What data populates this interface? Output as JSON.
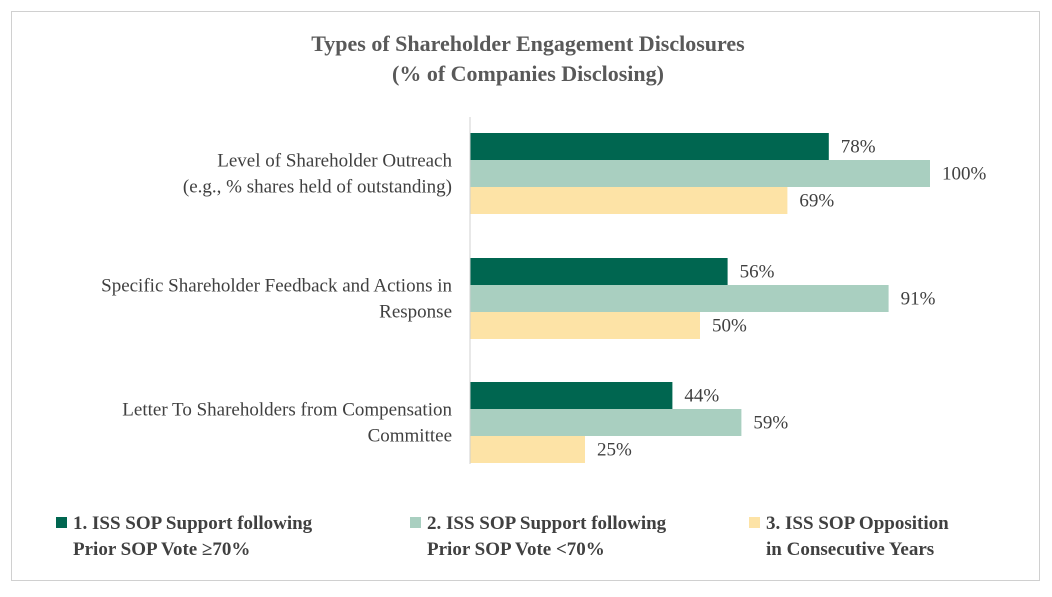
{
  "chart_data": {
    "type": "bar",
    "orientation": "horizontal",
    "title": "Types of Shareholder Engagement Disclosures",
    "subtitle": "(% of Companies Disclosing)",
    "categories": [
      "Level of Shareholder Outreach (e.g., % shares held of outstanding)",
      "Specific Shareholder Feedback and Actions in Response",
      "Letter To Shareholders from Compensation Committee"
    ],
    "category_lines": [
      [
        "Level of Shareholder Outreach",
        "(e.g., % shares held of outstanding)"
      ],
      [
        "Specific Shareholder Feedback and Actions in",
        "Response"
      ],
      [
        "Letter To Shareholders from Compensation",
        "Committee"
      ]
    ],
    "series": [
      {
        "name": "1. ISS SOP Support following Prior SOP Vote ≥70%",
        "name_lines": [
          "1. ISS SOP Support following",
          "Prior SOP Vote ≥70%"
        ],
        "color": "#006650",
        "values": [
          78,
          56,
          44
        ],
        "labels": [
          "78%",
          "56%",
          "44%"
        ]
      },
      {
        "name": "2. ISS SOP Support following Prior SOP Vote <70%",
        "name_lines": [
          "2. ISS SOP Support following",
          "Prior SOP Vote <70%"
        ],
        "color": "#a9cfc0",
        "values": [
          100,
          91,
          59
        ],
        "labels": [
          "100%",
          "91%",
          "59%"
        ]
      },
      {
        "name": "3. ISS SOP Opposition in Consecutive Years",
        "name_lines": [
          "3. ISS SOP Opposition",
          "in Consecutive Years"
        ],
        "color": "#fde3a6",
        "values": [
          69,
          50,
          25
        ],
        "labels": [
          "69%",
          "50%",
          "25%"
        ]
      }
    ],
    "xlim": [
      0,
      100
    ],
    "unit": "%",
    "grid": false,
    "legend_position": "bottom"
  }
}
